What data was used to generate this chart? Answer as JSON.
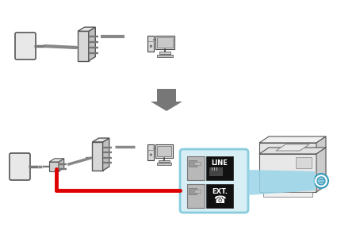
{
  "bg_color": "#ffffff",
  "red_cable_color": "#dd0000",
  "gray_cable_color": "#888888",
  "arrow_color": "#777777",
  "modem_face": "#d8d8d8",
  "modem_side": "#c0c0c0",
  "modem_top": "#e8e8e8",
  "wall_color": "#e8e8e8",
  "panel_border": "#88ccdd",
  "panel_bg": "#d8eef5",
  "line_dark": "#111111",
  "plug_gray": "#b0b0b0",
  "printer_body": "#e8e8e8",
  "printer_side": "#cccccc",
  "printer_top": "#f0f0f0",
  "cyan_arrow": "#99d4e8"
}
